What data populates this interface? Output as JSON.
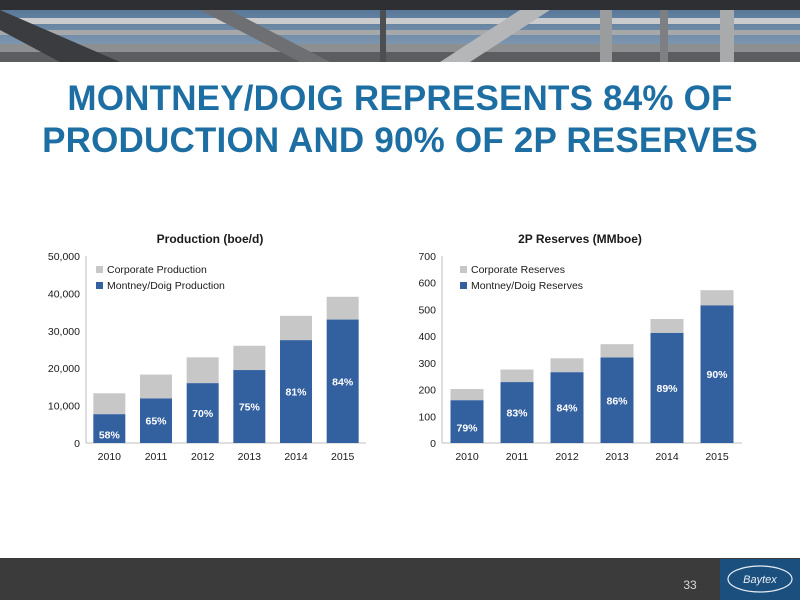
{
  "slide": {
    "title_line1": "MONTNEY/DOIG REPRESENTS 84% OF",
    "title_line2": "PRODUCTION AND 90% OF 2P RESERVES",
    "page_number": "33",
    "logo_text": "Baytex"
  },
  "colors": {
    "title": "#1d6fa3",
    "montney": "#33609f",
    "corporate": "#c7c7c7",
    "footer": "#3b3b3b",
    "logo_bg": "#1b4f7d"
  },
  "chart_data": [
    {
      "type": "bar",
      "stacked": true,
      "title": "Production (boe/d)",
      "categories": [
        "2010",
        "2011",
        "2012",
        "2013",
        "2014",
        "2015"
      ],
      "ylim": [
        0,
        50000
      ],
      "yticks": [
        "0",
        "10,000",
        "20,000",
        "30,000",
        "40,000",
        "50,000"
      ],
      "series": [
        {
          "name": "Montney/Doig Production",
          "values": [
            7700,
            11900,
            16000,
            19500,
            27500,
            33000
          ]
        },
        {
          "name": "Corporate Production",
          "values": [
            5600,
            6400,
            6900,
            6500,
            6500,
            6100
          ]
        }
      ],
      "data_labels": [
        "58%",
        "65%",
        "70%",
        "75%",
        "81%",
        "84%"
      ],
      "legend": "top-left",
      "grid": false
    },
    {
      "type": "bar",
      "stacked": true,
      "title": "2P Reserves (MMboe)",
      "categories": [
        "2010",
        "2011",
        "2012",
        "2013",
        "2014",
        "2015"
      ],
      "ylim": [
        0,
        700
      ],
      "yticks": [
        "0",
        "100",
        "200",
        "300",
        "400",
        "500",
        "600",
        "700"
      ],
      "series": [
        {
          "name": "Montney/Doig Reserves",
          "values": [
            160,
            228,
            265,
            320,
            412,
            515
          ]
        },
        {
          "name": "Corporate Reserves",
          "values": [
            42,
            47,
            52,
            50,
            52,
            57
          ]
        }
      ],
      "data_labels": [
        "79%",
        "83%",
        "84%",
        "86%",
        "89%",
        "90%"
      ],
      "legend": "top-left",
      "grid": false
    }
  ]
}
